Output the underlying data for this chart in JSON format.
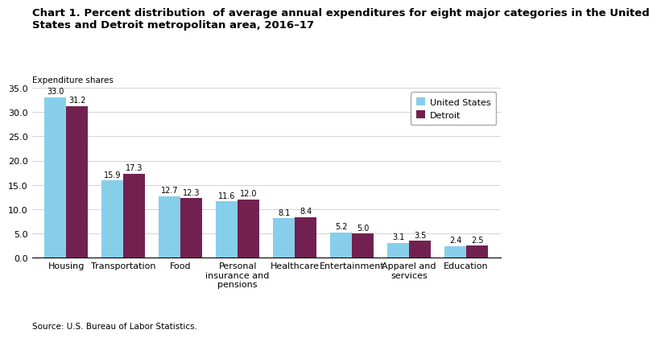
{
  "title_line1": "Chart 1. Percent distribution  of average annual expenditures for eight major categories in the United",
  "title_line2": "States and Detroit metropolitan area, 2016–17",
  "ylabel": "Expenditure shares",
  "source": "Source: U.S. Bureau of Labor Statistics.",
  "categories": [
    "Housing",
    "Transportation",
    "Food",
    "Personal\ninsurance and\npensions",
    "Healthcare",
    "Entertainment",
    "Apparel and\nservices",
    "Education"
  ],
  "us_values": [
    33.0,
    15.9,
    12.7,
    11.6,
    8.1,
    5.2,
    3.1,
    2.4
  ],
  "detroit_values": [
    31.2,
    17.3,
    12.3,
    12.0,
    8.4,
    5.0,
    3.5,
    2.5
  ],
  "us_color": "#87CEEB",
  "detroit_color": "#722050",
  "ylim": [
    0,
    35.0
  ],
  "yticks": [
    0.0,
    5.0,
    10.0,
    15.0,
    20.0,
    25.0,
    30.0,
    35.0
  ],
  "legend_labels": [
    "United States",
    "Detroit"
  ],
  "bar_width": 0.38,
  "title_fontsize": 9.5,
  "label_fontsize": 7.5,
  "tick_fontsize": 8,
  "value_fontsize": 7
}
